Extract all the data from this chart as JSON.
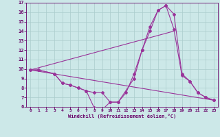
{
  "bg_color": "#cce8e8",
  "grid_color": "#aacccc",
  "line_color": "#993399",
  "spine_color": "#660066",
  "tick_color": "#660066",
  "xlabel": "Windchill (Refroidissement éolien,°C)",
  "xlim": [
    -0.5,
    23.5
  ],
  "ylim": [
    6,
    17
  ],
  "yticks": [
    6,
    7,
    8,
    9,
    10,
    11,
    12,
    13,
    14,
    15,
    16,
    17
  ],
  "xticks": [
    0,
    1,
    2,
    3,
    4,
    5,
    6,
    7,
    8,
    9,
    10,
    11,
    12,
    13,
    14,
    15,
    16,
    17,
    18,
    19,
    20,
    21,
    22,
    23
  ],
  "line1_x": [
    0,
    1,
    3,
    4,
    5,
    6,
    7,
    8,
    9,
    10,
    11,
    12,
    13,
    14,
    15,
    16,
    17,
    18,
    19,
    20,
    21,
    22,
    23
  ],
  "line1_y": [
    9.9,
    9.9,
    9.5,
    8.5,
    8.3,
    8.0,
    7.7,
    5.9,
    5.7,
    6.5,
    6.5,
    7.5,
    9.5,
    12.0,
    14.5,
    16.2,
    16.7,
    15.8,
    9.5,
    8.7,
    7.5,
    7.0,
    6.7
  ],
  "line2_x": [
    0,
    1,
    3,
    4,
    5,
    6,
    7,
    8,
    9,
    10,
    11,
    13,
    14,
    15,
    16,
    17,
    18,
    19,
    20,
    21,
    22,
    23
  ],
  "line2_y": [
    9.9,
    9.9,
    9.5,
    8.5,
    8.3,
    8.0,
    7.7,
    7.5,
    7.5,
    6.5,
    6.5,
    9.0,
    12.0,
    14.0,
    16.2,
    16.7,
    14.2,
    9.3,
    8.7,
    7.5,
    7.0,
    6.7
  ],
  "line3_x": [
    0,
    23
  ],
  "line3_y": [
    9.9,
    6.7
  ],
  "line4_x": [
    0,
    18
  ],
  "line4_y": [
    9.9,
    14.0
  ]
}
